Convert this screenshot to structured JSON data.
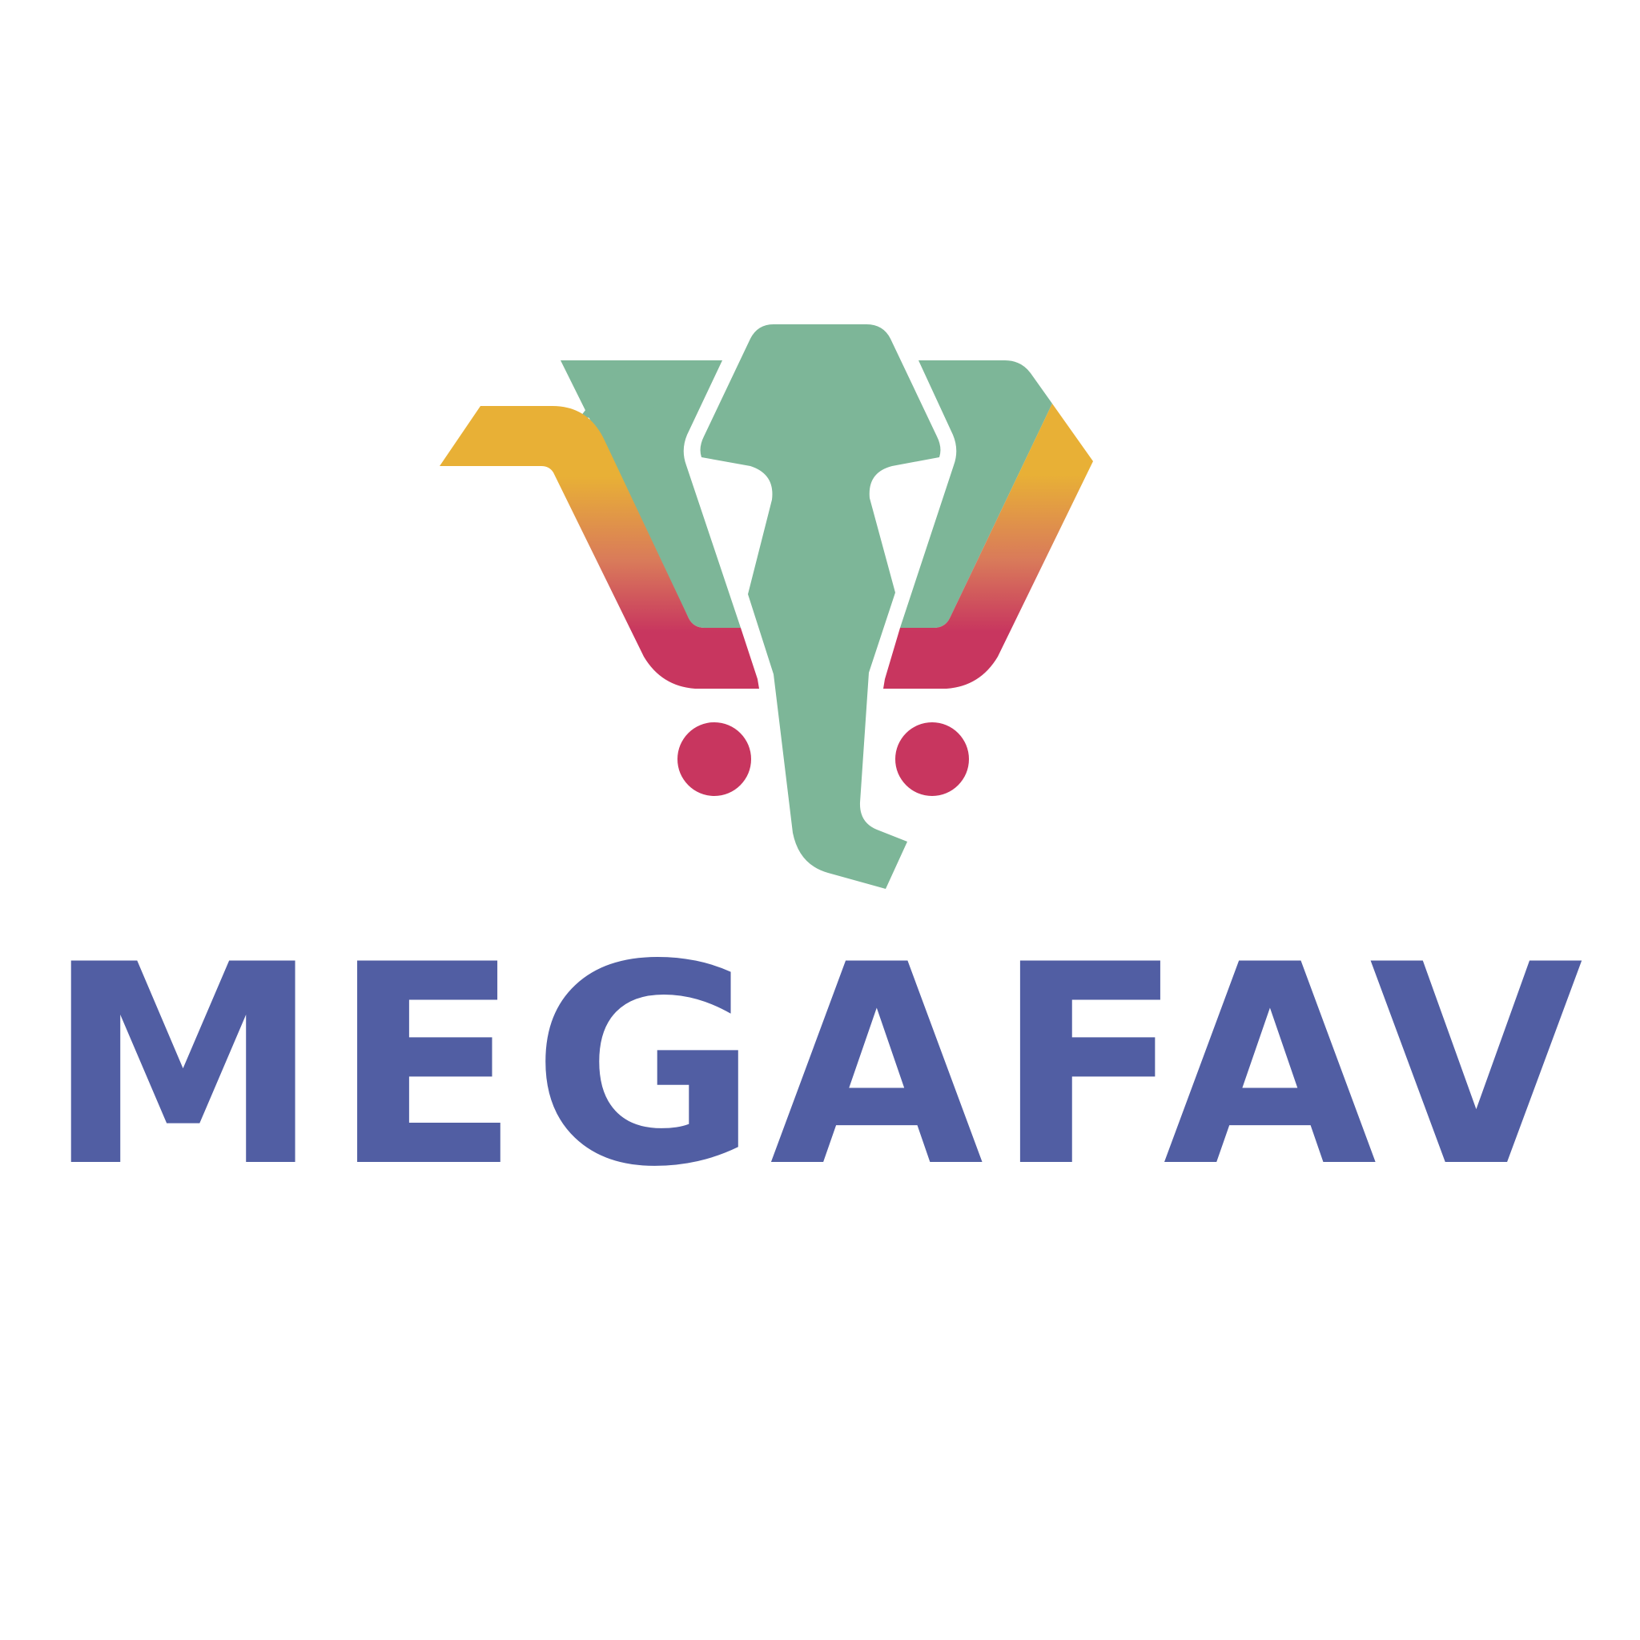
{
  "brand": {
    "name": "MEGAFAV",
    "logo_icon": "elephant-head-icon"
  },
  "colors": {
    "background": "#ffffff",
    "wordmark": "#515EA3",
    "elephant_green": "#7DB698",
    "gradient_top": "#E8B036",
    "gradient_mid": "#D97A5A",
    "gradient_bottom": "#C8365F",
    "eyes": "#C8365F"
  }
}
